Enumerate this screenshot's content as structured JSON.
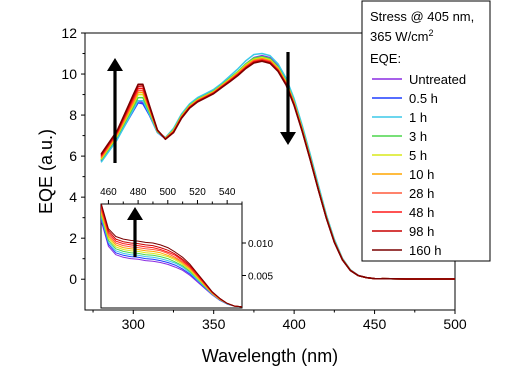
{
  "chart_data": [
    {
      "type": "line",
      "title": "",
      "xlabel": "Wavelength (nm)",
      "ylabel": "EQE (a.u.)",
      "xlim": [
        270,
        500
      ],
      "ylim": [
        -1.5,
        12
      ],
      "xticks": [
        300,
        350,
        400,
        450,
        500
      ],
      "yticks": [
        0,
        2,
        4,
        6,
        8,
        10,
        12
      ],
      "grid": false,
      "legend": {
        "placement": "top-right",
        "title_lines": [
          "Stress @ 405 nm,",
          "365 W/cm",
          "EQE:"
        ],
        "title_superscript": "2"
      },
      "x": [
        280,
        290,
        300,
        303,
        306,
        310,
        315,
        320,
        325,
        330,
        335,
        340,
        345,
        350,
        355,
        360,
        365,
        370,
        375,
        380,
        385,
        390,
        395,
        400,
        405,
        410,
        415,
        420,
        425,
        430,
        435,
        440,
        445,
        450,
        460,
        470,
        480,
        490,
        500
      ],
      "series": [
        {
          "name": "Untreated",
          "color": "#8a2be2",
          "values": [
            5.8,
            6.9,
            8.3,
            8.7,
            8.6,
            8.1,
            7.2,
            6.9,
            7.3,
            8.0,
            8.5,
            8.8,
            9.0,
            9.2,
            9.5,
            9.8,
            10.1,
            10.5,
            10.8,
            10.9,
            10.8,
            10.4,
            9.7,
            8.7,
            7.4,
            6.0,
            4.5,
            3.1,
            1.9,
            1.0,
            0.45,
            0.18,
            0.08,
            0.03,
            0.02,
            0.01,
            0.01,
            0.01,
            0.01
          ]
        },
        {
          "name": "0.5 h",
          "color": "#1f3fff",
          "values": [
            5.75,
            6.85,
            8.2,
            8.6,
            8.55,
            8.0,
            7.15,
            6.85,
            7.25,
            7.95,
            8.45,
            8.75,
            8.95,
            9.15,
            9.45,
            9.75,
            10.05,
            10.45,
            10.75,
            10.85,
            10.75,
            10.35,
            9.65,
            8.65,
            7.35,
            5.95,
            4.45,
            3.05,
            1.85,
            0.98,
            0.44,
            0.17,
            0.08,
            0.03,
            0.02,
            0.01,
            0.01,
            0.01,
            0.01
          ]
        },
        {
          "name": "1 h",
          "color": "#3cc8e8",
          "values": [
            5.7,
            6.8,
            8.25,
            8.7,
            8.7,
            8.05,
            7.15,
            6.9,
            7.35,
            8.05,
            8.55,
            8.85,
            9.05,
            9.25,
            9.55,
            9.9,
            10.25,
            10.65,
            10.95,
            11.0,
            10.9,
            10.5,
            9.8,
            8.8,
            7.5,
            6.1,
            4.6,
            3.15,
            1.95,
            1.02,
            0.46,
            0.18,
            0.08,
            0.03,
            0.02,
            0.01,
            0.01,
            0.01,
            0.01
          ]
        },
        {
          "name": "3 h",
          "color": "#4cd64c",
          "values": [
            5.8,
            6.95,
            8.4,
            8.85,
            8.85,
            8.15,
            7.2,
            6.88,
            7.28,
            7.98,
            8.48,
            8.78,
            8.98,
            9.18,
            9.48,
            9.8,
            10.12,
            10.5,
            10.78,
            10.85,
            10.75,
            10.35,
            9.66,
            8.66,
            7.36,
            5.96,
            4.46,
            3.06,
            1.86,
            0.98,
            0.44,
            0.17,
            0.08,
            0.03,
            0.02,
            0.01,
            0.01,
            0.01,
            0.01
          ]
        },
        {
          "name": "5 h",
          "color": "#d8e81a",
          "values": [
            5.85,
            7.0,
            8.5,
            9.0,
            9.0,
            8.25,
            7.22,
            6.87,
            7.25,
            7.95,
            8.45,
            8.75,
            8.95,
            9.15,
            9.45,
            9.76,
            10.08,
            10.45,
            10.72,
            10.8,
            10.7,
            10.3,
            9.62,
            8.62,
            7.32,
            5.92,
            4.43,
            3.04,
            1.85,
            0.97,
            0.44,
            0.17,
            0.08,
            0.03,
            0.02,
            0.01,
            0.01,
            0.01,
            0.01
          ]
        },
        {
          "name": "10 h",
          "color": "#ffa500",
          "values": [
            5.9,
            7.05,
            8.6,
            9.1,
            9.1,
            8.3,
            7.24,
            6.86,
            7.22,
            7.92,
            8.42,
            8.72,
            8.92,
            9.12,
            9.42,
            9.72,
            10.04,
            10.4,
            10.68,
            10.75,
            10.65,
            10.26,
            9.58,
            8.58,
            7.29,
            5.9,
            4.41,
            3.02,
            1.84,
            0.96,
            0.43,
            0.17,
            0.08,
            0.03,
            0.02,
            0.01,
            0.01,
            0.01,
            0.01
          ]
        },
        {
          "name": "28 h",
          "color": "#ff5a3c",
          "values": [
            5.95,
            7.1,
            8.7,
            9.2,
            9.2,
            8.35,
            7.25,
            6.85,
            7.2,
            7.9,
            8.4,
            8.7,
            8.9,
            9.1,
            9.4,
            9.7,
            10.0,
            10.36,
            10.64,
            10.72,
            10.62,
            10.22,
            9.55,
            8.55,
            7.26,
            5.88,
            4.4,
            3.01,
            1.83,
            0.96,
            0.43,
            0.17,
            0.08,
            0.03,
            0.02,
            0.01,
            0.01,
            0.01,
            0.01
          ]
        },
        {
          "name": "48 h",
          "color": "#ff1a1a",
          "values": [
            6.0,
            7.15,
            8.8,
            9.3,
            9.3,
            8.4,
            7.26,
            6.84,
            7.18,
            7.88,
            8.38,
            8.68,
            8.88,
            9.08,
            9.38,
            9.68,
            9.98,
            10.33,
            10.6,
            10.68,
            10.58,
            10.19,
            9.52,
            8.52,
            7.24,
            5.86,
            4.38,
            3.0,
            1.82,
            0.95,
            0.43,
            0.17,
            0.08,
            0.03,
            0.02,
            0.01,
            0.01,
            0.01,
            0.01
          ]
        },
        {
          "name": "98 h",
          "color": "#c80000",
          "values": [
            6.05,
            7.2,
            8.9,
            9.4,
            9.42,
            8.45,
            7.27,
            6.83,
            7.16,
            7.86,
            8.36,
            8.66,
            8.86,
            9.06,
            9.36,
            9.65,
            9.95,
            10.3,
            10.57,
            10.65,
            10.55,
            10.16,
            9.49,
            8.49,
            7.22,
            5.84,
            4.37,
            2.99,
            1.81,
            0.95,
            0.43,
            0.17,
            0.08,
            0.03,
            0.02,
            0.01,
            0.01,
            0.01,
            0.01
          ]
        },
        {
          "name": "160 h",
          "color": "#7a0000",
          "values": [
            6.1,
            7.25,
            9.0,
            9.5,
            9.5,
            8.5,
            7.28,
            6.82,
            7.14,
            7.84,
            8.34,
            8.64,
            8.84,
            9.04,
            9.34,
            9.62,
            9.92,
            10.27,
            10.54,
            10.62,
            10.52,
            10.13,
            9.46,
            8.46,
            7.2,
            5.82,
            4.36,
            2.98,
            1.8,
            0.94,
            0.42,
            0.17,
            0.08,
            0.03,
            0.02,
            0.01,
            0.01,
            0.01,
            0.01
          ]
        }
      ]
    },
    {
      "type": "line",
      "title": "",
      "xlabel": "",
      "ylabel": "",
      "xlim": [
        455,
        550
      ],
      "ylim": [
        0,
        0.016
      ],
      "xticks": [
        460,
        480,
        500,
        520,
        540
      ],
      "yticks": [
        0.005,
        0.01
      ],
      "ytick_labels": [
        "0.005",
        "0.010"
      ],
      "x": [
        455,
        460,
        465,
        470,
        475,
        480,
        485,
        490,
        495,
        500,
        505,
        510,
        515,
        520,
        525,
        530,
        535,
        540,
        545,
        550
      ],
      "series": [
        {
          "name": "Untreated",
          "color": "#8a2be2",
          "values": [
            0.0135,
            0.0095,
            0.0082,
            0.0078,
            0.0076,
            0.0075,
            0.0073,
            0.0072,
            0.007,
            0.0067,
            0.0063,
            0.0058,
            0.005,
            0.004,
            0.003,
            0.002,
            0.0012,
            0.0006,
            0.0003,
            0.0002
          ]
        },
        {
          "name": "0.5 h",
          "color": "#1f3fff",
          "values": [
            0.0138,
            0.0098,
            0.0085,
            0.0081,
            0.0079,
            0.0078,
            0.0076,
            0.0075,
            0.0073,
            0.007,
            0.0066,
            0.006,
            0.0052,
            0.0042,
            0.0031,
            0.0021,
            0.0012,
            0.0006,
            0.0003,
            0.0002
          ]
        },
        {
          "name": "1 h",
          "color": "#3cc8e8",
          "values": [
            0.0141,
            0.0101,
            0.0088,
            0.0084,
            0.0082,
            0.0081,
            0.0079,
            0.0078,
            0.0076,
            0.0073,
            0.0069,
            0.0063,
            0.0054,
            0.0043,
            0.0032,
            0.0021,
            0.0013,
            0.0006,
            0.0003,
            0.0002
          ]
        },
        {
          "name": "3 h",
          "color": "#4cd64c",
          "values": [
            0.0144,
            0.0104,
            0.0091,
            0.0087,
            0.0085,
            0.0084,
            0.0082,
            0.0081,
            0.0079,
            0.0076,
            0.0071,
            0.0065,
            0.0056,
            0.0045,
            0.0033,
            0.0022,
            0.0013,
            0.0007,
            0.0003,
            0.0002
          ]
        },
        {
          "name": "5 h",
          "color": "#d8e81a",
          "values": [
            0.0147,
            0.0107,
            0.0094,
            0.009,
            0.0088,
            0.0087,
            0.0085,
            0.0084,
            0.0082,
            0.0079,
            0.0074,
            0.0067,
            0.0058,
            0.0046,
            0.0034,
            0.0022,
            0.0013,
            0.0007,
            0.0003,
            0.0002
          ]
        },
        {
          "name": "10 h",
          "color": "#ffa500",
          "values": [
            0.015,
            0.011,
            0.0097,
            0.0093,
            0.0091,
            0.009,
            0.0088,
            0.0087,
            0.0085,
            0.0081,
            0.0076,
            0.0069,
            0.006,
            0.0048,
            0.0035,
            0.0023,
            0.0014,
            0.0007,
            0.0003,
            0.0002
          ]
        },
        {
          "name": "28 h",
          "color": "#ff5a3c",
          "values": [
            0.0153,
            0.0113,
            0.01,
            0.0096,
            0.0094,
            0.0093,
            0.0091,
            0.009,
            0.0088,
            0.0084,
            0.0078,
            0.0071,
            0.0062,
            0.0049,
            0.0036,
            0.0023,
            0.0014,
            0.0007,
            0.0003,
            0.0002
          ]
        },
        {
          "name": "48 h",
          "color": "#ff1a1a",
          "values": [
            0.0156,
            0.0116,
            0.0103,
            0.0099,
            0.0097,
            0.0096,
            0.0094,
            0.0093,
            0.009,
            0.0086,
            0.0081,
            0.0073,
            0.0063,
            0.005,
            0.0037,
            0.0024,
            0.0014,
            0.0007,
            0.0003,
            0.0002
          ]
        },
        {
          "name": "98 h",
          "color": "#c80000",
          "values": [
            0.0159,
            0.0119,
            0.0106,
            0.0102,
            0.01,
            0.0099,
            0.0097,
            0.0096,
            0.0093,
            0.0089,
            0.0083,
            0.0075,
            0.0065,
            0.0052,
            0.0038,
            0.0024,
            0.0015,
            0.0007,
            0.0003,
            0.0002
          ]
        },
        {
          "name": "160 h",
          "color": "#7a0000",
          "values": [
            0.0162,
            0.0122,
            0.011,
            0.0106,
            0.0104,
            0.0103,
            0.0101,
            0.01,
            0.0097,
            0.0093,
            0.0086,
            0.0078,
            0.0067,
            0.0053,
            0.0039,
            0.0025,
            0.0015,
            0.0007,
            0.0003,
            0.0002
          ]
        }
      ]
    }
  ]
}
